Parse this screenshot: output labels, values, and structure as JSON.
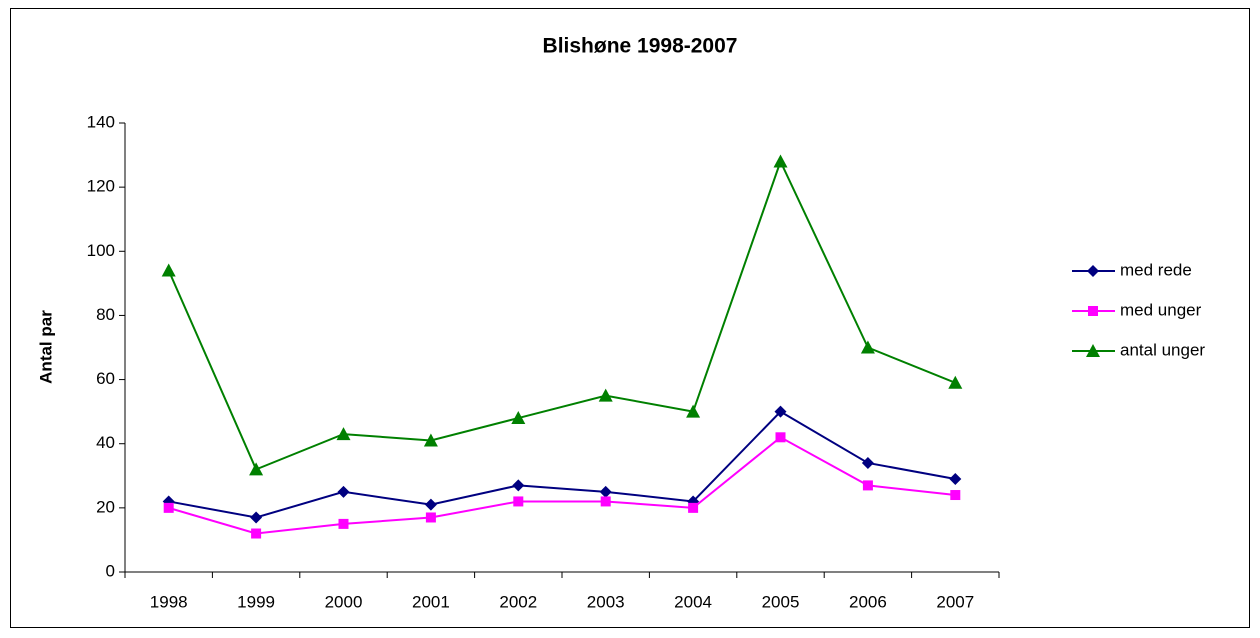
{
  "chart_data": {
    "type": "line",
    "title": "Blishøne 1998-2007",
    "y_label": "Antal par",
    "categories": [
      "1998",
      "1999",
      "2000",
      "2001",
      "2002",
      "2003",
      "2004",
      "2005",
      "2006",
      "2007"
    ],
    "series": [
      {
        "name": "med rede",
        "color": "#000080",
        "marker": "diamond",
        "values": [
          22,
          17,
          25,
          21,
          27,
          25,
          22,
          50,
          34,
          29
        ]
      },
      {
        "name": "med unger",
        "color": "#ff00ff",
        "marker": "square",
        "values": [
          20,
          12,
          15,
          17,
          22,
          22,
          20,
          42,
          27,
          24
        ]
      },
      {
        "name": "antal unger",
        "color": "#008000",
        "marker": "triangle",
        "values": [
          94,
          32,
          43,
          41,
          48,
          55,
          50,
          128,
          70,
          59
        ]
      }
    ],
    "ylim": [
      0,
      140
    ],
    "yticks": [
      0,
      20,
      40,
      60,
      80,
      100,
      120,
      140
    ],
    "grid": false,
    "legend": "right"
  }
}
